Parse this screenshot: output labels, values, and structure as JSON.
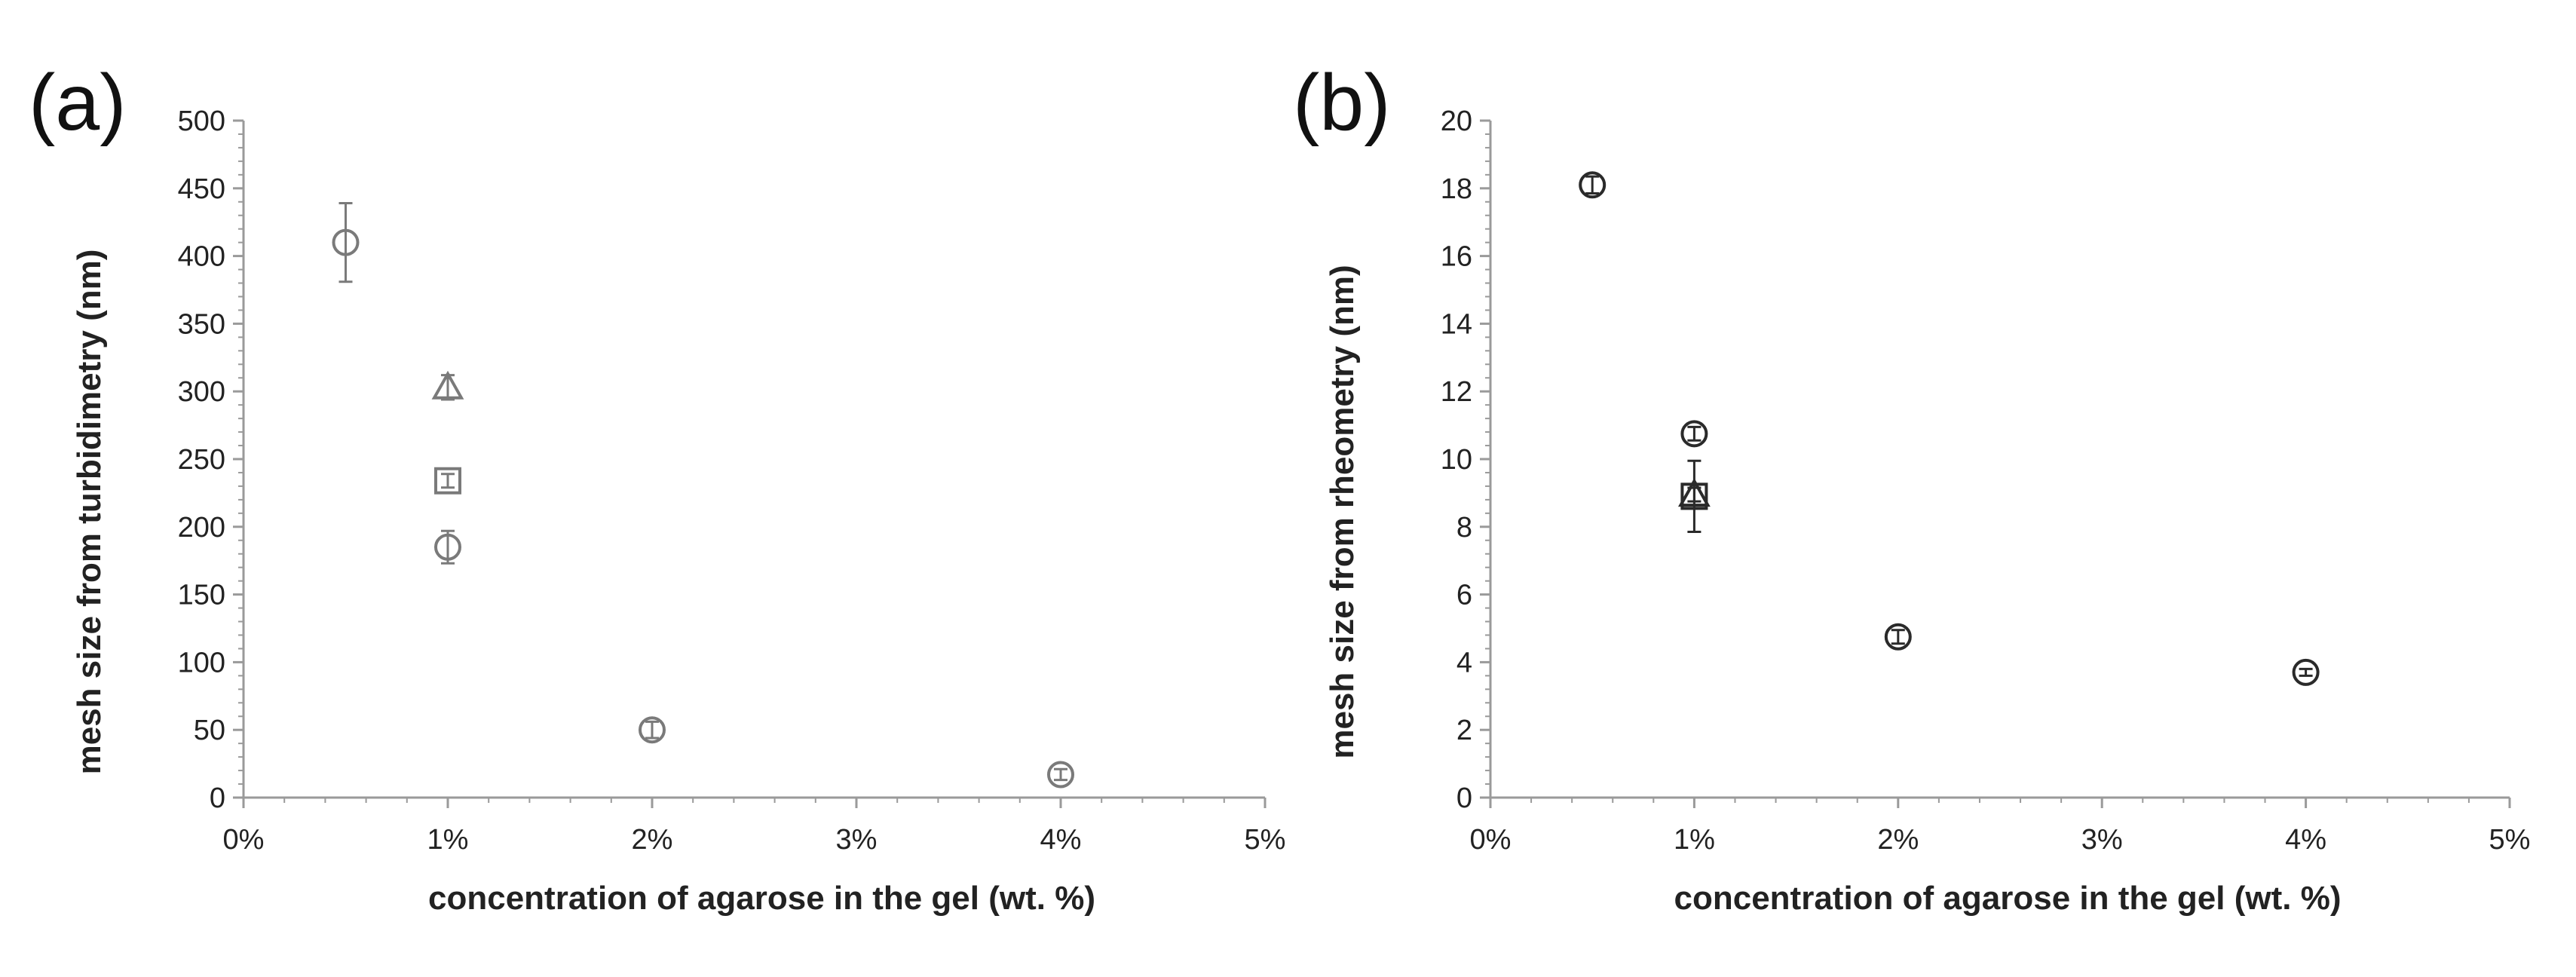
{
  "chart_data": [
    {
      "type": "scatter",
      "panel_label": "(a)",
      "title": "",
      "xlabel": "concentration of agarose in the gel (wt. %)",
      "ylabel": "mesh size from turbidimetry (nm)",
      "xlim": [
        0,
        5
      ],
      "ylim": [
        0,
        500
      ],
      "x_ticks": [
        0,
        1,
        2,
        3,
        4,
        5
      ],
      "x_tick_labels": [
        "0%",
        "1%",
        "2%",
        "3%",
        "4%",
        "5%"
      ],
      "y_ticks": [
        0,
        50,
        100,
        150,
        200,
        250,
        300,
        350,
        400,
        450,
        500
      ],
      "y_tick_labels": [
        "0",
        "50",
        "100",
        "150",
        "200",
        "250",
        "300",
        "350",
        "400",
        "450",
        "500"
      ],
      "grid": false,
      "series": [
        {
          "name": "circle",
          "marker": "circle",
          "x": [
            0.5,
            1,
            2,
            4
          ],
          "y": [
            410,
            185,
            50,
            17
          ],
          "err": [
            29,
            12,
            6,
            4
          ]
        },
        {
          "name": "square",
          "marker": "square",
          "x": [
            1
          ],
          "y": [
            234
          ],
          "err": [
            5
          ]
        },
        {
          "name": "triangle",
          "marker": "triangle",
          "x": [
            1
          ],
          "y": [
            303
          ],
          "err": [
            9
          ]
        }
      ]
    },
    {
      "type": "scatter",
      "panel_label": "(b)",
      "title": "",
      "xlabel": "concentration of agarose in the gel (wt. %)",
      "ylabel": "mesh size from rheometry (nm)",
      "xlim": [
        0,
        5
      ],
      "ylim": [
        0,
        20
      ],
      "x_ticks": [
        0,
        1,
        2,
        3,
        4,
        5
      ],
      "x_tick_labels": [
        "0%",
        "1%",
        "2%",
        "3%",
        "4%",
        "5%"
      ],
      "y_ticks": [
        0,
        2,
        4,
        6,
        8,
        10,
        12,
        14,
        16,
        18,
        20
      ],
      "y_tick_labels": [
        "0",
        "2",
        "4",
        "6",
        "8",
        "10",
        "12",
        "14",
        "16",
        "18",
        "20"
      ],
      "grid": false,
      "series": [
        {
          "name": "circle",
          "marker": "circle",
          "x": [
            0.5,
            1,
            2,
            4
          ],
          "y": [
            18.1,
            10.75,
            4.75,
            3.7
          ],
          "err": [
            0.25,
            0.2,
            0.2,
            0.1
          ]
        },
        {
          "name": "square",
          "marker": "square",
          "x": [
            1
          ],
          "y": [
            8.9
          ],
          "err": [
            1.05
          ]
        },
        {
          "name": "triangle",
          "marker": "triangle",
          "x": [
            1
          ],
          "y": [
            8.95
          ],
          "err": [
            0.2
          ]
        }
      ]
    }
  ],
  "colors": {
    "marker_stroke_a": "#7a7a7a",
    "marker_stroke_b": "#2a2a2a",
    "axis": "#9a9a9a",
    "text": "#222222"
  }
}
